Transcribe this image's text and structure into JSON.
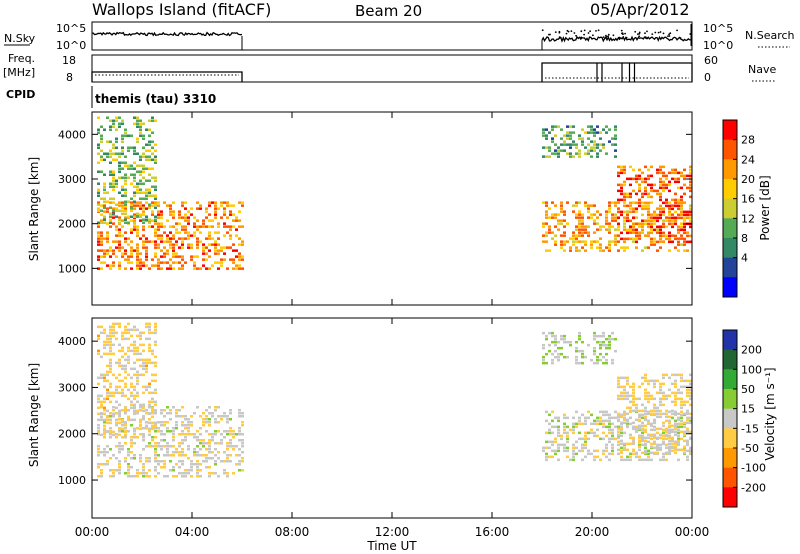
{
  "header": {
    "station": "Wallops Island (fitACF)",
    "beam": "Beam 20",
    "date": "05/Apr/2012"
  },
  "noise_panel": {
    "left_label": "N.Sky",
    "right_label": "N.Search",
    "left_ticks": [
      "10^5",
      "10^0"
    ],
    "right_ticks": [
      "10^5",
      "10^0"
    ]
  },
  "freq_panel": {
    "left_label_1": "Freq.",
    "left_label_2": "[MHz]",
    "right_label": "Nave",
    "left_ticks": [
      "18",
      "8"
    ],
    "right_ticks": [
      "60",
      "0"
    ]
  },
  "cpid_panel": {
    "label": "CPID",
    "program": "themis (tau) 3310"
  },
  "chart_data": [
    {
      "type": "heatmap",
      "parameter": "Power",
      "ylabel": "Slant Range [km]",
      "ylim": [
        180,
        4500
      ],
      "y_ticks": [
        "1000",
        "2000",
        "3000",
        "4000"
      ],
      "xlim_hours": [
        0,
        24
      ],
      "colorbar_label": "Power [dB]",
      "colorbar_ticks": [
        "28",
        "24",
        "20",
        "16",
        "12",
        "8",
        "4"
      ],
      "colorbar_colors": [
        "#ff0000",
        "#ff5500",
        "#ff9900",
        "#ffcc00",
        "#cccc33",
        "#55aa55",
        "#338866",
        "#224499",
        "#0000ff"
      ],
      "data_windows_hours": [
        [
          0,
          6
        ],
        [
          18,
          24
        ]
      ],
      "echo_regions": [
        {
          "t": [
            0.2,
            6.0
          ],
          "range_km": [
            1000,
            2500
          ],
          "power_db": 24
        },
        {
          "t": [
            0.2,
            2.5
          ],
          "range_km": [
            2000,
            4400
          ],
          "power_db": 14
        },
        {
          "t": [
            18.0,
            24.0
          ],
          "range_km": [
            1400,
            2500
          ],
          "power_db": 22
        },
        {
          "t": [
            18.0,
            21.0
          ],
          "range_km": [
            3500,
            4200
          ],
          "power_db": 12
        },
        {
          "t": [
            21.0,
            24.0
          ],
          "range_km": [
            1600,
            3300
          ],
          "power_db": 26
        }
      ]
    },
    {
      "type": "heatmap",
      "parameter": "Velocity",
      "ylabel": "Slant Range [km]",
      "ylim": [
        180,
        4500
      ],
      "y_ticks": [
        "1000",
        "2000",
        "3000",
        "4000"
      ],
      "xlim_hours": [
        0,
        24
      ],
      "colorbar_label": "Velocity [m s⁻¹]",
      "colorbar_ticks": [
        "200",
        "100",
        "50",
        "15",
        "-15",
        "-50",
        "-100",
        "-200"
      ],
      "colorbar_colors": [
        "#2233aa",
        "#226633",
        "#33aa33",
        "#88cc33",
        "#c8c8c8",
        "#ffcc44",
        "#ff9900",
        "#ff5500",
        "#ff0000"
      ],
      "data_windows_hours": [
        [
          0,
          6
        ],
        [
          18,
          24
        ]
      ],
      "echo_regions": [
        {
          "t": [
            0.2,
            6.0
          ],
          "range_km": [
            1100,
            2600
          ],
          "velocity_ms": -10
        },
        {
          "t": [
            0.2,
            2.5
          ],
          "range_km": [
            2000,
            4400
          ],
          "velocity_ms": -40
        },
        {
          "t": [
            18.0,
            24.0
          ],
          "range_km": [
            1400,
            2500
          ],
          "velocity_ms": 0
        },
        {
          "t": [
            18.0,
            21.0
          ],
          "range_km": [
            3500,
            4200
          ],
          "velocity_ms": 20
        },
        {
          "t": [
            21.0,
            24.0
          ],
          "range_km": [
            1600,
            3300
          ],
          "velocity_ms": -30
        }
      ]
    }
  ],
  "x_axis": {
    "ticks": [
      "00:00",
      "04:00",
      "08:00",
      "12:00",
      "16:00",
      "20:00",
      "00:00"
    ],
    "label": "Time UT"
  }
}
